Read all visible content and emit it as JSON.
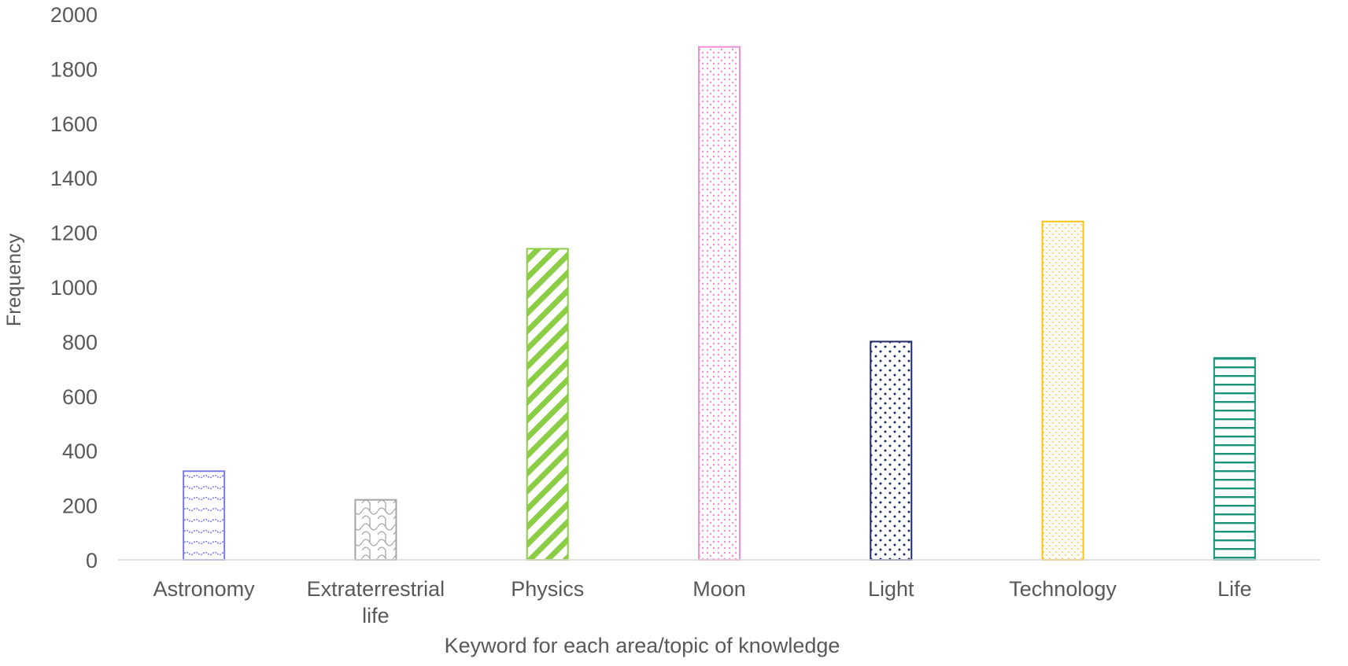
{
  "chart_data": {
    "type": "bar",
    "title": "",
    "xlabel": "Keyword for each area/topic of knowledge",
    "ylabel": "Frequency",
    "categories": [
      [
        "Astronomy"
      ],
      [
        "Extraterrestrial",
        "life"
      ],
      [
        "Physics"
      ],
      [
        "Moon"
      ],
      [
        "Light"
      ],
      [
        "Technology"
      ],
      [
        "Life"
      ]
    ],
    "values": [
      325,
      220,
      1140,
      1880,
      800,
      1240,
      740
    ],
    "ylim": [
      0,
      2000
    ],
    "yticks": [
      0,
      200,
      400,
      600,
      800,
      1000,
      1200,
      1400,
      1600,
      1800,
      2000
    ],
    "grid": false,
    "legend": "none",
    "bar_styles": [
      {
        "color": "#7b7be8",
        "pattern": "wave"
      },
      {
        "color": "#a6a6a6",
        "pattern": "shingle"
      },
      {
        "color": "#8ccd46",
        "pattern": "diagonal"
      },
      {
        "color": "#f08fd6",
        "pattern": "diamond-dots"
      },
      {
        "color": "#1f2a6b",
        "pattern": "dots"
      },
      {
        "color": "#f5c215",
        "pattern": "fine-dots"
      },
      {
        "color": "#1a9479",
        "pattern": "horizontal"
      }
    ]
  }
}
